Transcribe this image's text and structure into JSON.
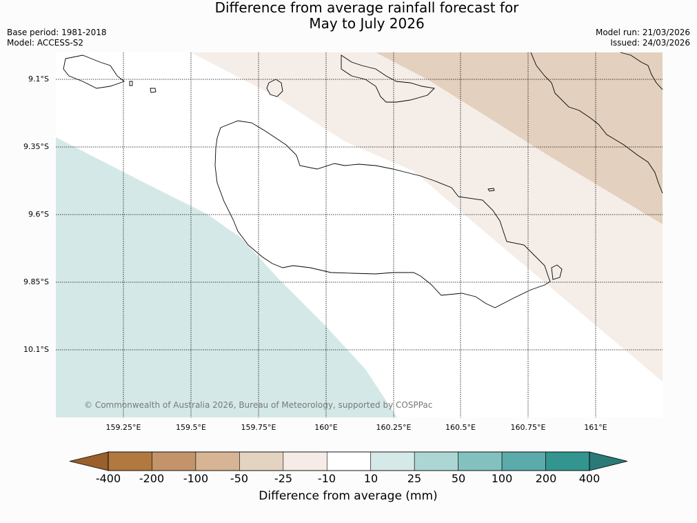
{
  "title": {
    "line1": "Difference from average rainfall forecast for",
    "line2": "May to July 2026"
  },
  "meta_left": {
    "base_period": "Base period: 1981-2018",
    "model": "Model: ACCESS-S2"
  },
  "meta_right": {
    "model_run": "Model run: 21/03/2026",
    "issued": "Issued: 24/03/2026"
  },
  "lat_ticks": [
    "9.1°S",
    "9.35°S",
    "9.6°S",
    "9.85°S",
    "10.1°S"
  ],
  "lon_ticks": [
    "159.25°E",
    "159.5°E",
    "159.75°E",
    "160°E",
    "160.25°E",
    "160.5°E",
    "160.75°E",
    "161°E"
  ],
  "copyright": "© Commonwealth of Australia 2026, Bureau of Meteorology, supported by COSPPac",
  "colorbar": {
    "title": "Difference from average (mm)",
    "labels": [
      "-400",
      "-200",
      "-100",
      "-50",
      "-25",
      "-10",
      "10",
      "25",
      "50",
      "100",
      "200",
      "400"
    ],
    "colors": [
      "#9a5f2a",
      "#b1783f",
      "#c39469",
      "#d6b494",
      "#e5d3c2",
      "#f5ece7",
      "#ffffff",
      "#d5e9e8",
      "#acd6d4",
      "#82c1bf",
      "#5aabaa",
      "#33958f",
      "#2a7b78"
    ]
  },
  "map_fill_colors": {
    "band_dark": "#e3d0be",
    "band_light": "#f5ede8",
    "wet": "#d4e9e7"
  }
}
